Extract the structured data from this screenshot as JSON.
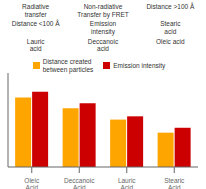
{
  "chart_data": {
    "type": "bar",
    "categories": [
      "Oleic\nAcid",
      "Deccanoic\nAcid",
      "Lauric\nAcid",
      "Stearic\nAcid"
    ],
    "series": [
      {
        "name": "Distance created\nbetween particles",
        "color": "#FFA500",
        "values": [
          0.85,
          0.72,
          0.58,
          0.42
        ]
      },
      {
        "name": "Emission intensity",
        "color": "#CC0000",
        "values": [
          0.92,
          0.78,
          0.62,
          0.48
        ]
      }
    ],
    "ylim": [
      0,
      1.15
    ],
    "yticks": [],
    "tick_labels": "x",
    "legend": "top",
    "annotations": [
      "Radiative\ntransfer",
      "Non-radiative\nTransfer by FRET",
      "Distance >100 Å",
      "Distance <100 Å",
      "Emission\nintensity",
      "Stearic\nacid",
      "Lauric\nacid",
      "Deccanoic\nacid",
      "Oleic acid"
    ]
  }
}
